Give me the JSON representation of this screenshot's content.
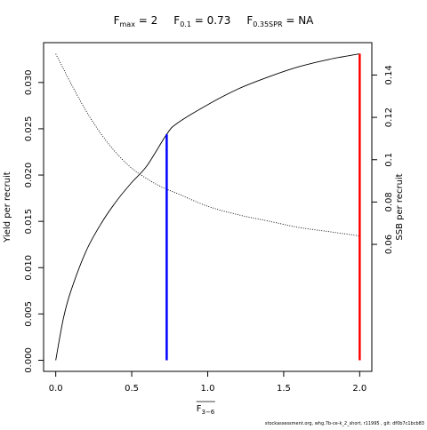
{
  "chart_data": {
    "type": "line",
    "title": {
      "parts": [
        {
          "base": "F",
          "sub": "max",
          "value": " = 2"
        },
        {
          "base": "F",
          "sub": "0.1",
          "value": " = 0.73"
        },
        {
          "base": "F",
          "sub": "0.35SPR",
          "value": " = NA"
        }
      ]
    },
    "xlabel": {
      "base": "F",
      "sub": "3−6",
      "overline": true
    },
    "ylabel_left": "Yield per recruit",
    "ylabel_right": "SSB per recruit",
    "xlim": [
      -0.08,
      2.08
    ],
    "ylim_left": [
      -0.0012,
      0.0343
    ],
    "ylim_right": [
      0.0,
      0.1553
    ],
    "x_ticks": [
      0,
      0.5,
      1,
      1.5,
      2
    ],
    "x_tick_labels": [
      "0.0",
      "0.5",
      "1.0",
      "1.5",
      "2.0"
    ],
    "y_left_ticks": [
      0,
      0.005,
      0.01,
      0.015,
      0.02,
      0.025,
      0.03
    ],
    "y_left_tick_labels": [
      "0.000",
      "0.005",
      "0.010",
      "0.015",
      "0.020",
      "0.025",
      "0.030"
    ],
    "y_right_ticks": [
      0.06,
      0.08,
      0.1,
      0.12,
      0.14
    ],
    "y_right_tick_labels": [
      "0.06",
      "0.08",
      "0.1",
      "0.12",
      "0.14"
    ],
    "series": [
      {
        "axis": "left",
        "style": "solid",
        "color": "#000000",
        "x": [
          0,
          0.05,
          0.1,
          0.2,
          0.3,
          0.4,
          0.5,
          0.6,
          0.73,
          0.8,
          1.0,
          1.2,
          1.4,
          1.6,
          1.8,
          2.0
        ],
        "y": [
          0.0,
          0.0045,
          0.0075,
          0.0118,
          0.0148,
          0.0172,
          0.0192,
          0.021,
          0.0244,
          0.0256,
          0.0276,
          0.0293,
          0.0306,
          0.0317,
          0.0325,
          0.0331
        ]
      },
      {
        "axis": "right",
        "style": "dotted",
        "color": "#000000",
        "x": [
          0,
          0.05,
          0.1,
          0.2,
          0.3,
          0.4,
          0.5,
          0.6,
          0.7,
          0.8,
          1.0,
          1.2,
          1.4,
          1.6,
          1.8,
          2.0
        ],
        "y": [
          0.15,
          0.143,
          0.136,
          0.123,
          0.112,
          0.103,
          0.096,
          0.091,
          0.087,
          0.084,
          0.078,
          0.074,
          0.071,
          0.068,
          0.066,
          0.064
        ]
      }
    ],
    "vertical_lines": [
      {
        "x": 0.73,
        "y_top": 0.0244,
        "color": "#0000ff"
      },
      {
        "x": 2.0,
        "y_top": 0.0331,
        "color": "#ff0000"
      }
    ]
  },
  "footer": "stockassessment.org, whg.7b-ce-k_2_short, r11995 , git: df0b7c1bcb83"
}
